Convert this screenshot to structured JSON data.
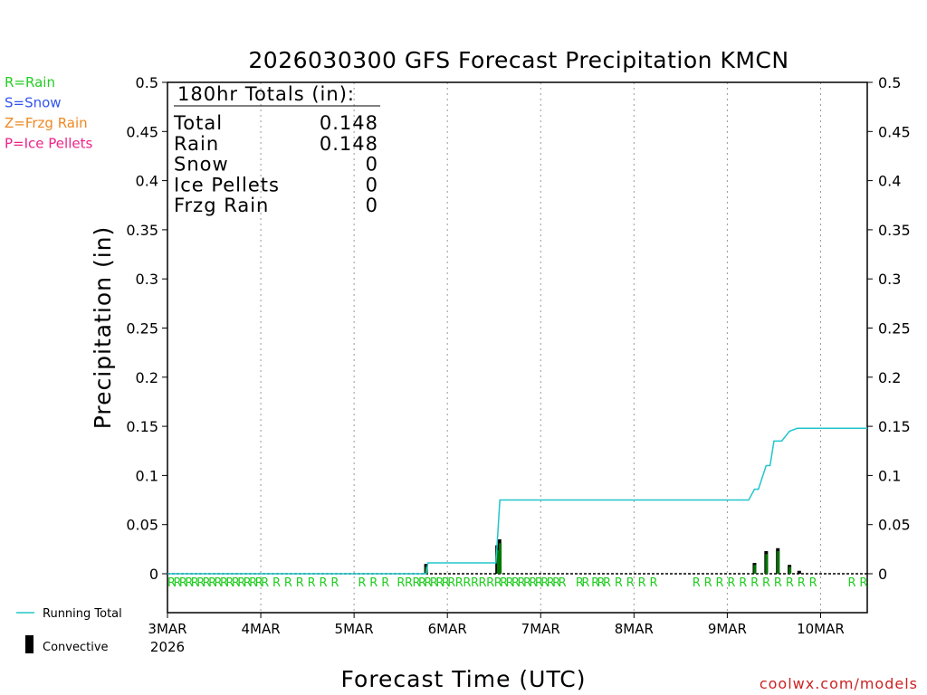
{
  "chart_data": {
    "type": "bar",
    "title": "2026030300 GFS Forecast Precipitation KMCN",
    "xlabel": "Forecast Time (UTC)",
    "ylabel": "Precipitation (in)",
    "ylim": [
      0,
      0.5
    ],
    "xlim_hours": [
      0,
      180
    ],
    "yticks": [
      0,
      0.05,
      0.1,
      0.15,
      0.2,
      0.25,
      0.3,
      0.35,
      0.4,
      0.45,
      0.5
    ],
    "xticks": [
      {
        "hour": 0,
        "label": "3MAR",
        "year": "2026"
      },
      {
        "hour": 24,
        "label": "4MAR"
      },
      {
        "hour": 48,
        "label": "5MAR"
      },
      {
        "hour": 72,
        "label": "6MAR"
      },
      {
        "hour": 96,
        "label": "7MAR"
      },
      {
        "hour": 120,
        "label": "8MAR"
      },
      {
        "hour": 144,
        "label": "9MAR"
      },
      {
        "hour": 168,
        "label": "10MAR"
      }
    ],
    "legend": {
      "types": [
        {
          "text": "R=Rain",
          "color": "#22cc22"
        },
        {
          "text": "S=Snow",
          "color": "#3355ee"
        },
        {
          "text": "Z=Frzg Rain",
          "color": "#ee8822"
        },
        {
          "text": "P=Ice Pellets",
          "color": "#ee2288"
        }
      ],
      "running_total": "Running Total",
      "convective": "Convective"
    },
    "totals": {
      "header": "180hr Totals (in):",
      "rows": [
        {
          "label": "Total",
          "value": "0.148"
        },
        {
          "label": "Rain",
          "value": "0.148"
        },
        {
          "label": "Snow",
          "value": "0"
        },
        {
          "label": "Ice Pellets",
          "value": "0"
        },
        {
          "label": "Frzg Rain",
          "value": "0"
        }
      ]
    },
    "series": [
      {
        "name": "Running Total",
        "color": "#22c5cc",
        "hours": [
          0,
          66.5,
          67,
          84.5,
          85.5,
          126,
          149.5,
          151,
          152,
          154,
          155,
          156,
          158,
          160,
          162,
          180
        ],
        "values": [
          0,
          0,
          0.011,
          0.011,
          0.075,
          0.075,
          0.075,
          0.086,
          0.086,
          0.11,
          0.11,
          0.135,
          0.135,
          0.145,
          0.148,
          0.148
        ]
      },
      {
        "name": "Precipitation",
        "color": "#000000",
        "hours": [
          66.5,
          84.8,
          85.4,
          151,
          154,
          157,
          160,
          162.5
        ],
        "values": [
          0.01,
          0.029,
          0.035,
          0.011,
          0.023,
          0.026,
          0.009,
          0.003
        ]
      },
      {
        "name": "Convective",
        "color": "#007700",
        "hours": [
          66.6,
          85.1,
          85.6,
          151.1,
          154.1,
          157.1,
          160.1
        ],
        "values": [
          0.007,
          0.024,
          0.031,
          0.009,
          0.02,
          0.023,
          0.007
        ]
      }
    ],
    "ptype_markers": {
      "letter": "R",
      "color": "#22cc22",
      "hours": [
        0,
        1.5,
        3,
        4.5,
        6,
        7.5,
        9,
        10.5,
        12,
        13.5,
        15,
        16.5,
        18,
        19.5,
        21,
        22.5,
        24,
        27,
        30,
        33,
        36,
        39,
        42,
        49,
        52,
        55,
        59,
        61,
        63,
        64.5,
        66,
        67.5,
        69,
        70.5,
        72,
        74,
        76,
        78,
        80,
        82,
        84,
        85.5,
        87,
        88.5,
        90,
        91.5,
        93,
        94.5,
        96,
        97.5,
        99,
        100.5,
        105,
        106.5,
        109,
        110.5,
        112,
        115,
        118,
        121,
        124,
        135,
        138,
        141,
        144,
        147,
        150,
        153,
        156,
        159,
        162,
        165,
        175,
        178
      ]
    },
    "credit": "coolwx.com/models"
  }
}
